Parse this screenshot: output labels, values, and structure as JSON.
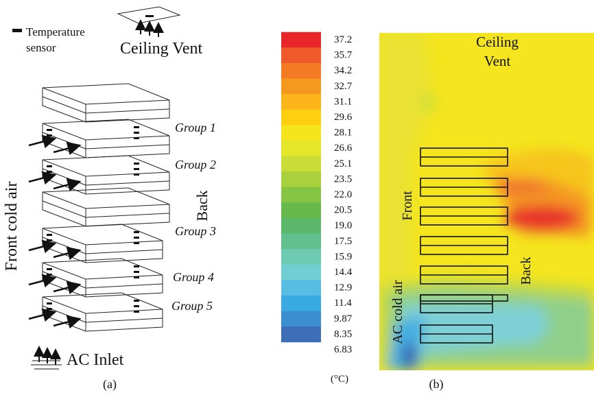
{
  "panel_a": {
    "legend": [
      "Temperature",
      "sensor"
    ],
    "ceiling_vent": "Ceiling Vent",
    "groups": [
      "Group 1",
      "Group 2",
      "Group 3",
      "Group 4",
      "Group 5"
    ],
    "back": "Back",
    "front_cold_air": "Front cold air",
    "ac_inlet": "AC Inlet",
    "caption": "(a)"
  },
  "colorbar": {
    "labels": [
      "37.2",
      "35.7",
      "34.2",
      "32.7",
      "31.1",
      "29.6",
      "28.1",
      "26.6",
      "25.1",
      "23.5",
      "22.0",
      "20.5",
      "19.0",
      "17.5",
      "15.9",
      "14.4",
      "12.9",
      "11.4",
      "9.87",
      "8.35",
      "6.83"
    ],
    "unit": "(°C)"
  },
  "panel_b": {
    "ceiling_vent": [
      "Ceiling",
      "Vent"
    ],
    "front": "Front",
    "back": "Back",
    "ac_cold_air": "AC cold air",
    "caption": "(b)"
  }
}
